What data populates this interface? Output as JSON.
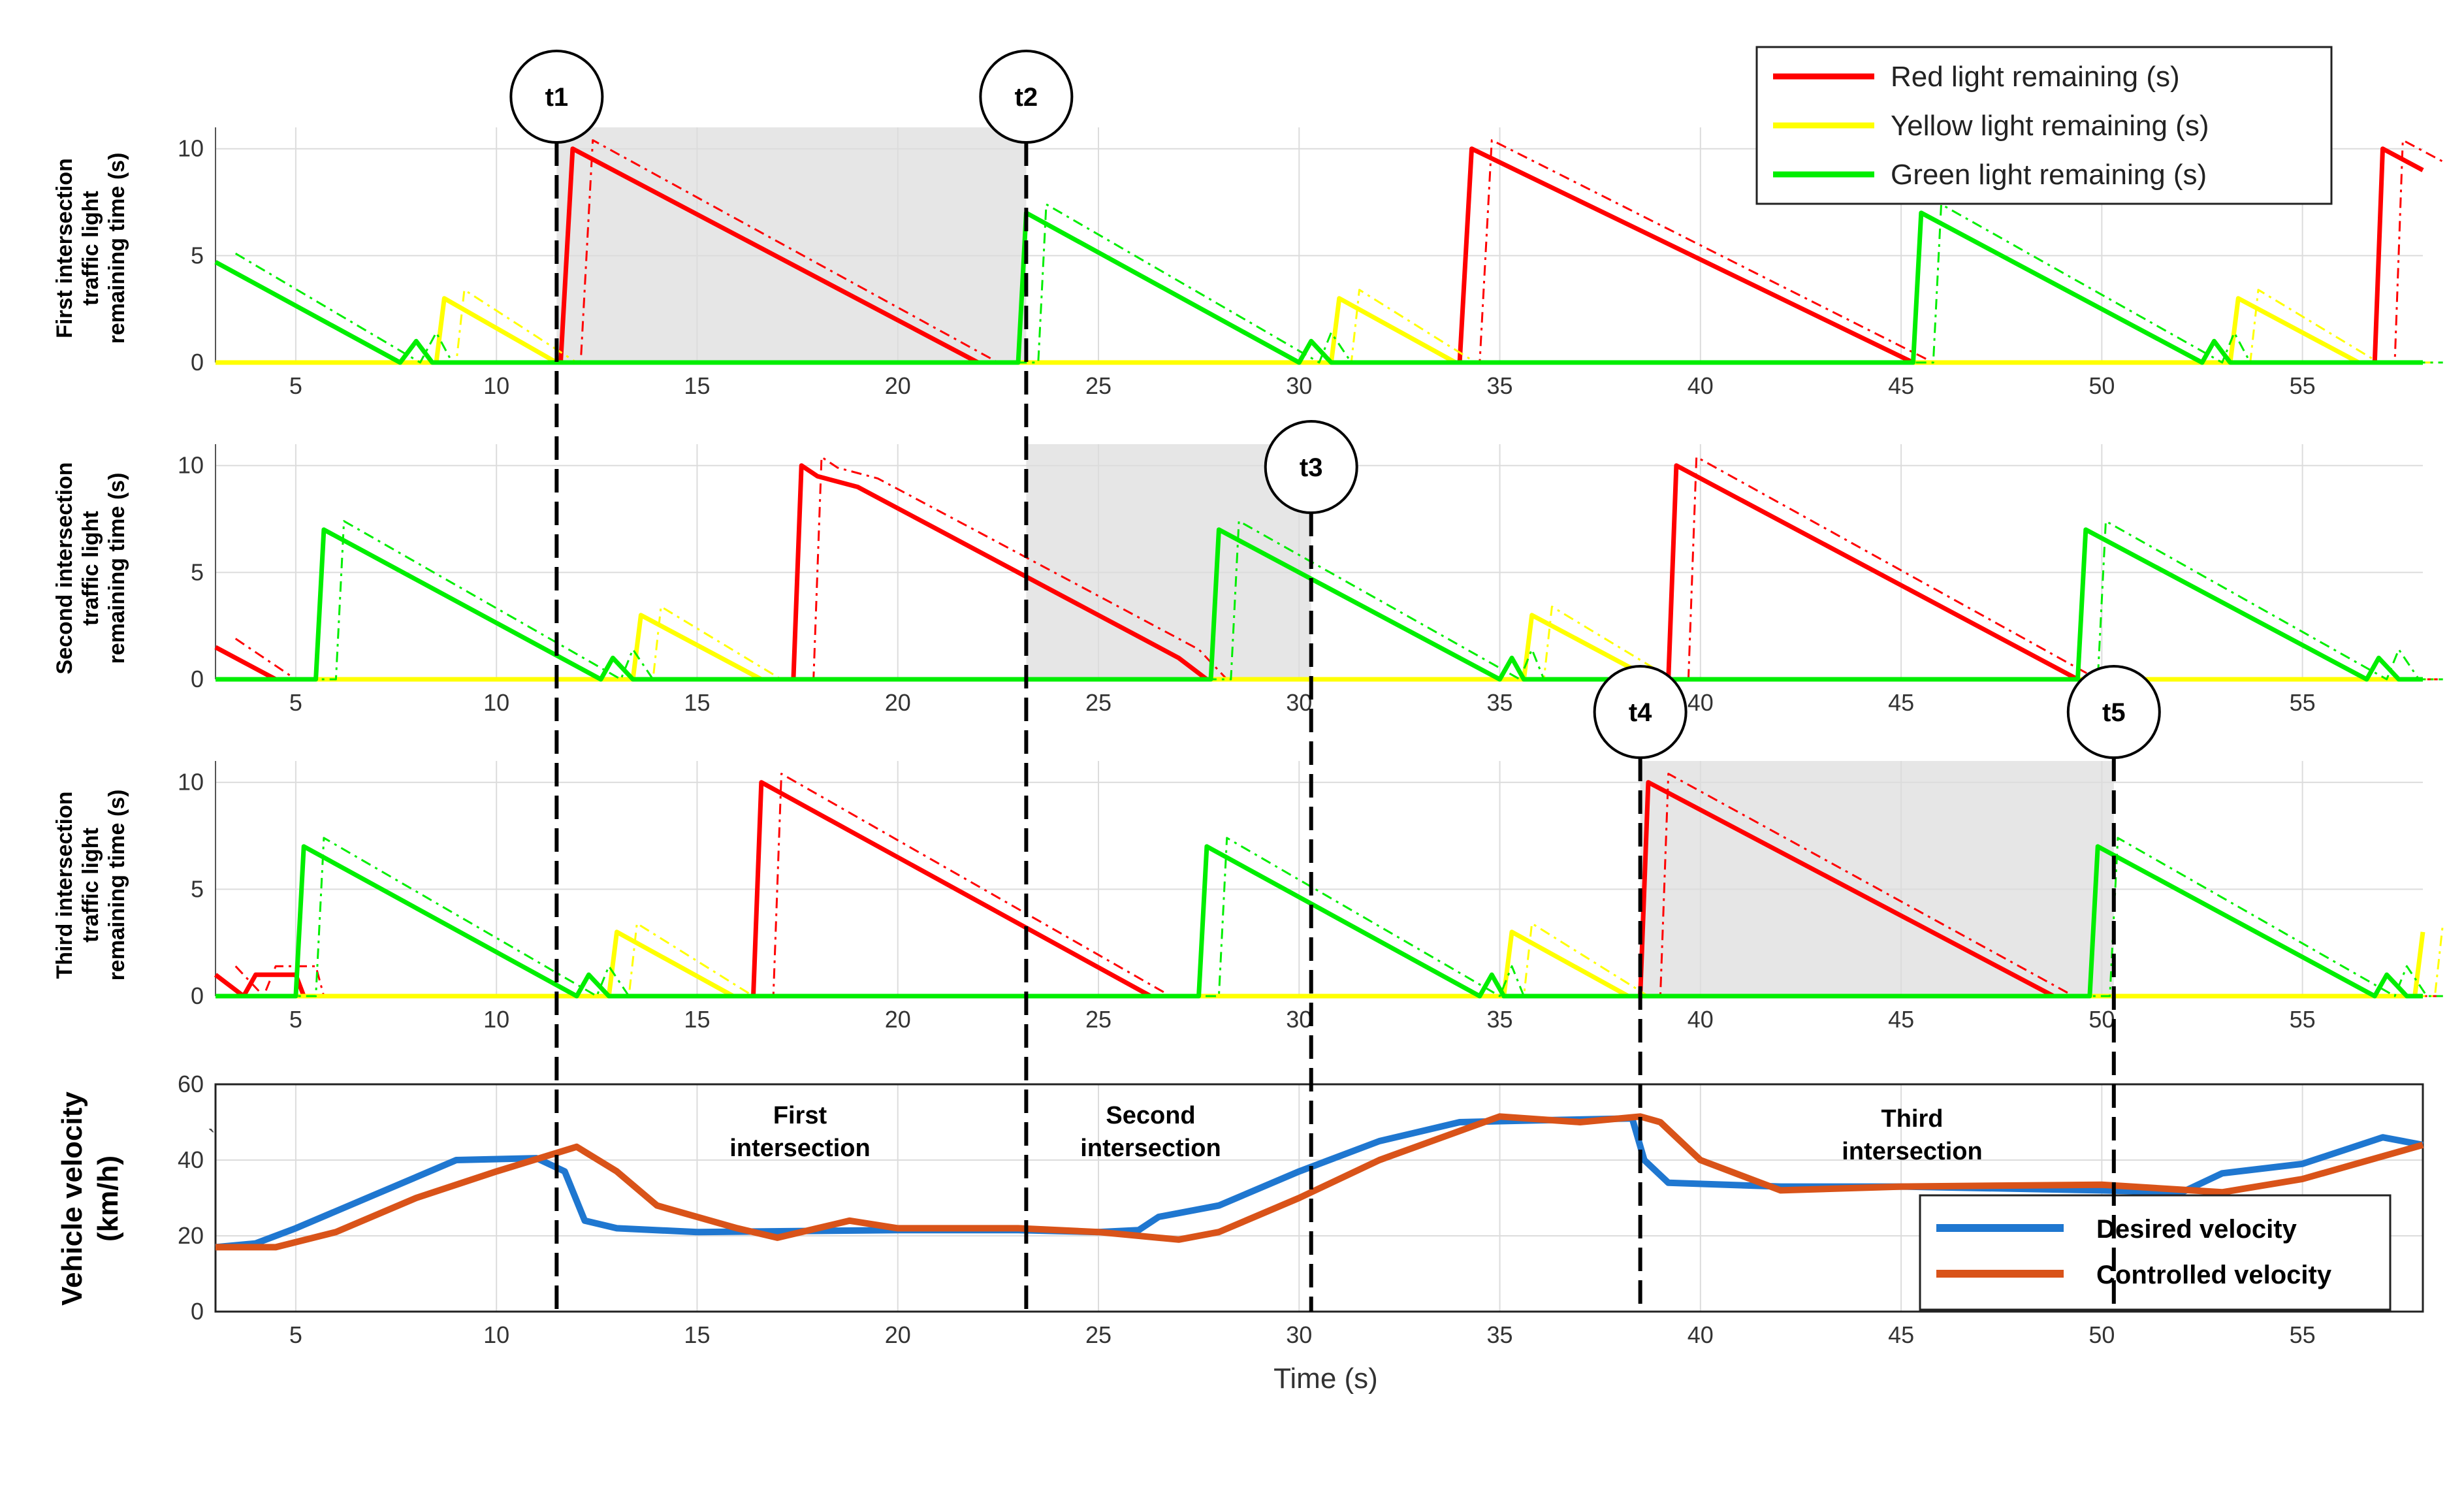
{
  "chart_data": [
    {
      "id": "first",
      "type": "line",
      "ylabel": [
        "First intersection",
        "traffic light",
        "remaining time (s)"
      ],
      "xlim": [
        3,
        58
      ],
      "ylim": [
        0,
        11
      ],
      "yticks": [
        0,
        5,
        10
      ],
      "xticks": [
        5,
        10,
        15,
        20,
        25,
        30,
        35,
        40,
        45,
        50,
        55
      ],
      "shaded": [
        11.5,
        23.2
      ],
      "series": [
        {
          "name": "Red light remaining (s)",
          "color": "#ff0000",
          "points": [
            [
              3,
              0
            ],
            [
              11.6,
              0
            ],
            [
              11.9,
              10
            ],
            [
              22.0,
              0
            ],
            [
              23.0,
              0
            ],
            [
              34.0,
              0
            ],
            [
              34.3,
              10
            ],
            [
              45.3,
              0
            ],
            [
              56.8,
              0
            ],
            [
              57.0,
              10
            ],
            [
              58,
              9
            ]
          ]
        },
        {
          "name": "Yellow light remaining (s)",
          "color": "#ffff00",
          "points": [
            [
              3,
              0
            ],
            [
              8.5,
              0
            ],
            [
              8.7,
              3
            ],
            [
              11.5,
              0
            ],
            [
              30.8,
              0
            ],
            [
              31.0,
              3
            ],
            [
              33.9,
              0
            ],
            [
              53.2,
              0
            ],
            [
              53.4,
              3
            ],
            [
              56.4,
              0
            ],
            [
              58,
              0
            ]
          ]
        },
        {
          "name": "Green light remaining (s)",
          "color": "#00ee00",
          "points": [
            [
              3,
              4.7
            ],
            [
              7.6,
              0
            ],
            [
              8.0,
              1
            ],
            [
              8.4,
              0
            ],
            [
              23.0,
              0
            ],
            [
              23.2,
              7
            ],
            [
              30.0,
              0
            ],
            [
              30.3,
              1
            ],
            [
              30.8,
              0
            ],
            [
              45.3,
              0
            ],
            [
              45.5,
              7
            ],
            [
              52.5,
              0
            ],
            [
              52.8,
              1
            ],
            [
              53.2,
              0
            ],
            [
              58,
              0
            ]
          ]
        }
      ]
    },
    {
      "id": "second",
      "type": "line",
      "ylabel": [
        "Second intersection",
        "traffic light",
        "remaining time (s)"
      ],
      "xlim": [
        3,
        58
      ],
      "ylim": [
        0,
        11
      ],
      "yticks": [
        0,
        5,
        10
      ],
      "xticks": [
        5,
        10,
        15,
        20,
        25,
        30,
        35,
        40,
        45,
        50,
        55
      ],
      "shaded": [
        23.2,
        30.3
      ],
      "series": [
        {
          "name": "Red light remaining (s)",
          "color": "#ff0000",
          "points": [
            [
              3,
              1.5
            ],
            [
              4.5,
              0
            ],
            [
              5.5,
              0
            ],
            [
              17.4,
              0
            ],
            [
              17.6,
              10
            ],
            [
              18.0,
              9.5
            ],
            [
              19.0,
              9
            ],
            [
              20.0,
              8
            ],
            [
              21.0,
              7
            ],
            [
              22.0,
              6
            ],
            [
              23.0,
              5
            ],
            [
              24.0,
              4
            ],
            [
              25.0,
              3
            ],
            [
              26.0,
              2
            ],
            [
              27.0,
              1
            ],
            [
              27.7,
              0
            ],
            [
              39.2,
              0
            ],
            [
              39.4,
              10
            ],
            [
              49.4,
              0
            ],
            [
              58,
              0
            ]
          ]
        },
        {
          "name": "Yellow light remaining (s)",
          "color": "#ffff00",
          "points": [
            [
              3,
              0
            ],
            [
              13.4,
              0
            ],
            [
              13.6,
              3
            ],
            [
              16.6,
              0
            ],
            [
              35.6,
              0
            ],
            [
              35.8,
              3
            ],
            [
              38.8,
              0
            ],
            [
              58,
              0
            ]
          ]
        },
        {
          "name": "Green light remaining (s)",
          "color": "#00ee00",
          "points": [
            [
              3,
              0
            ],
            [
              5.5,
              0
            ],
            [
              5.7,
              7
            ],
            [
              12.6,
              0
            ],
            [
              12.9,
              1
            ],
            [
              13.4,
              0
            ],
            [
              27.8,
              0
            ],
            [
              28.0,
              7
            ],
            [
              35.0,
              0
            ],
            [
              35.3,
              1
            ],
            [
              35.6,
              0
            ],
            [
              49.4,
              0
            ],
            [
              49.6,
              7
            ],
            [
              56.6,
              0
            ],
            [
              56.9,
              1
            ],
            [
              57.4,
              0
            ],
            [
              58,
              0
            ]
          ]
        }
      ]
    },
    {
      "id": "third",
      "type": "line",
      "ylabel": [
        "Third intersection",
        "traffic light",
        "remaining time (s)"
      ],
      "xlim": [
        3,
        58
      ],
      "ylim": [
        0,
        11
      ],
      "yticks": [
        0,
        5,
        10
      ],
      "xticks": [
        5,
        10,
        15,
        20,
        25,
        30,
        35,
        40,
        45,
        50,
        55
      ],
      "shaded": [
        38.5,
        50.3
      ],
      "series": [
        {
          "name": "Red light remaining (s)",
          "color": "#ff0000",
          "points": [
            [
              3,
              1
            ],
            [
              3.7,
              0
            ],
            [
              4.0,
              1
            ],
            [
              5.0,
              1
            ],
            [
              5.2,
              0
            ],
            [
              16.4,
              0
            ],
            [
              16.6,
              10
            ],
            [
              26.3,
              0
            ],
            [
              27.4,
              0
            ],
            [
              38.5,
              0
            ],
            [
              38.7,
              10
            ],
            [
              48.8,
              0
            ],
            [
              58,
              0
            ]
          ]
        },
        {
          "name": "Yellow light remaining (s)",
          "color": "#ffff00",
          "points": [
            [
              3,
              0
            ],
            [
              12.8,
              0
            ],
            [
              13.0,
              3
            ],
            [
              15.9,
              0
            ],
            [
              35.1,
              0
            ],
            [
              35.3,
              3
            ],
            [
              38.2,
              0
            ],
            [
              57.8,
              0
            ],
            [
              58,
              3
            ]
          ]
        },
        {
          "name": "Green light remaining (s)",
          "color": "#00ee00",
          "points": [
            [
              3,
              0
            ],
            [
              5.0,
              0
            ],
            [
              5.2,
              7
            ],
            [
              12.0,
              0
            ],
            [
              12.3,
              1
            ],
            [
              12.8,
              0
            ],
            [
              27.5,
              0
            ],
            [
              27.7,
              7
            ],
            [
              34.5,
              0
            ],
            [
              34.8,
              1
            ],
            [
              35.1,
              0
            ],
            [
              49.7,
              0
            ],
            [
              49.9,
              7
            ],
            [
              56.8,
              0
            ],
            [
              57.1,
              1
            ],
            [
              57.6,
              0
            ],
            [
              58,
              0
            ]
          ]
        }
      ]
    },
    {
      "id": "velocity",
      "type": "line",
      "ylabel": [
        "Vehicle velocity",
        "(km/h)"
      ],
      "xlabel": "Time (s)",
      "xlim": [
        3,
        58
      ],
      "ylim": [
        0,
        60
      ],
      "yticks": [
        0,
        20,
        40,
        60
      ],
      "xticks": [
        5,
        10,
        15,
        20,
        25,
        30,
        35,
        40,
        45,
        50,
        55
      ],
      "series": [
        {
          "name": "Desired velocity",
          "color": "#1f77d0",
          "points": [
            [
              3,
              17
            ],
            [
              4,
              18
            ],
            [
              5,
              22
            ],
            [
              7,
              31
            ],
            [
              9,
              40
            ],
            [
              11,
              40.5
            ],
            [
              11.7,
              37
            ],
            [
              12.2,
              24
            ],
            [
              13,
              22
            ],
            [
              15,
              21
            ],
            [
              20,
              21.5
            ],
            [
              23,
              21.5
            ],
            [
              25,
              21
            ],
            [
              26,
              21.5
            ],
            [
              26.5,
              25
            ],
            [
              28,
              28
            ],
            [
              30,
              37
            ],
            [
              32,
              45
            ],
            [
              34,
              50
            ],
            [
              36,
              50.5
            ],
            [
              38.3,
              51
            ],
            [
              38.6,
              40
            ],
            [
              39.2,
              34
            ],
            [
              42,
              33
            ],
            [
              45,
              33
            ],
            [
              50,
              32
            ],
            [
              52,
              31.5
            ],
            [
              53,
              36.5
            ],
            [
              55,
              39
            ],
            [
              57,
              46
            ],
            [
              58,
              44
            ]
          ]
        },
        {
          "name": "Controlled velocity",
          "color": "#d95319",
          "points": [
            [
              3,
              17
            ],
            [
              4.5,
              17
            ],
            [
              6,
              21
            ],
            [
              8,
              30
            ],
            [
              10,
              37
            ],
            [
              12,
              43.5
            ],
            [
              13,
              37
            ],
            [
              14,
              28
            ],
            [
              16,
              22
            ],
            [
              17,
              19.5
            ],
            [
              18,
              22
            ],
            [
              18.8,
              24
            ],
            [
              20,
              22
            ],
            [
              23,
              22
            ],
            [
              25,
              21
            ],
            [
              27,
              19
            ],
            [
              28,
              21
            ],
            [
              30,
              30
            ],
            [
              32,
              40
            ],
            [
              35,
              51.5
            ],
            [
              37,
              50
            ],
            [
              38.5,
              51.5
            ],
            [
              39,
              50
            ],
            [
              40,
              40
            ],
            [
              42,
              32
            ],
            [
              45,
              33
            ],
            [
              50,
              33.5
            ],
            [
              53,
              31.5
            ],
            [
              55,
              35
            ],
            [
              58,
              44
            ]
          ]
        }
      ]
    }
  ],
  "markers": [
    {
      "label": "t1",
      "x": 11.5
    },
    {
      "label": "t2",
      "x": 23.2
    },
    {
      "label": "t3",
      "x": 30.3
    },
    {
      "label": "t4",
      "x": 38.5
    },
    {
      "label": "t5",
      "x": 50.3
    }
  ],
  "region_labels": [
    {
      "line1": "First",
      "line2": "intersection"
    },
    {
      "line1": "Second",
      "line2": "intersection"
    },
    {
      "line1": "Third",
      "line2": "intersection"
    }
  ],
  "legend_top": [
    "Red light remaining (s)",
    "Yellow light remaining (s)",
    "Green light remaining (s)"
  ],
  "legend_bottom": [
    "Desired velocity",
    "Controlled velocity"
  ],
  "velocity_stray_mark": "`"
}
